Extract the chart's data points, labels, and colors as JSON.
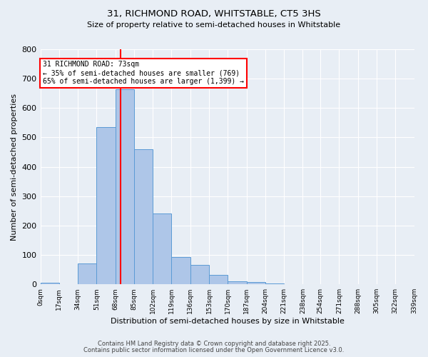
{
  "title1": "31, RICHMOND ROAD, WHITSTABLE, CT5 3HS",
  "title2": "Size of property relative to semi-detached houses in Whitstable",
  "xlabel": "Distribution of semi-detached houses by size in Whitstable",
  "ylabel": "Number of semi-detached properties",
  "bin_edges": [
    0,
    17,
    34,
    51,
    68,
    85,
    102,
    119,
    136,
    153,
    170,
    187,
    204,
    221,
    238,
    254,
    271,
    288,
    305,
    322,
    339
  ],
  "bar_heights": [
    5,
    0,
    70,
    535,
    665,
    460,
    240,
    93,
    67,
    33,
    10,
    8,
    2,
    0,
    0,
    0,
    0,
    0,
    0,
    0
  ],
  "bar_color": "#aec6e8",
  "bar_edge_color": "#5b9bd5",
  "property_size": 73,
  "vline_color": "red",
  "annotation_title": "31 RICHMOND ROAD: 73sqm",
  "annotation_line1": "← 35% of semi-detached houses are smaller (769)",
  "annotation_line2": "65% of semi-detached houses are larger (1,399) →",
  "annotation_box_color": "white",
  "annotation_box_edge": "red",
  "ylim": [
    0,
    800
  ],
  "yticks": [
    0,
    100,
    200,
    300,
    400,
    500,
    600,
    700,
    800
  ],
  "background_color": "#e8eef5",
  "grid_color": "white",
  "footnote1": "Contains HM Land Registry data © Crown copyright and database right 2025.",
  "footnote2": "Contains public sector information licensed under the Open Government Licence v3.0.",
  "tick_labels": [
    "0sqm",
    "17sqm",
    "34sqm",
    "51sqm",
    "68sqm",
    "85sqm",
    "102sqm",
    "119sqm",
    "136sqm",
    "153sqm",
    "170sqm",
    "187sqm",
    "204sqm",
    "221sqm",
    "238sqm",
    "254sqm",
    "271sqm",
    "288sqm",
    "305sqm",
    "322sqm",
    "339sqm"
  ]
}
